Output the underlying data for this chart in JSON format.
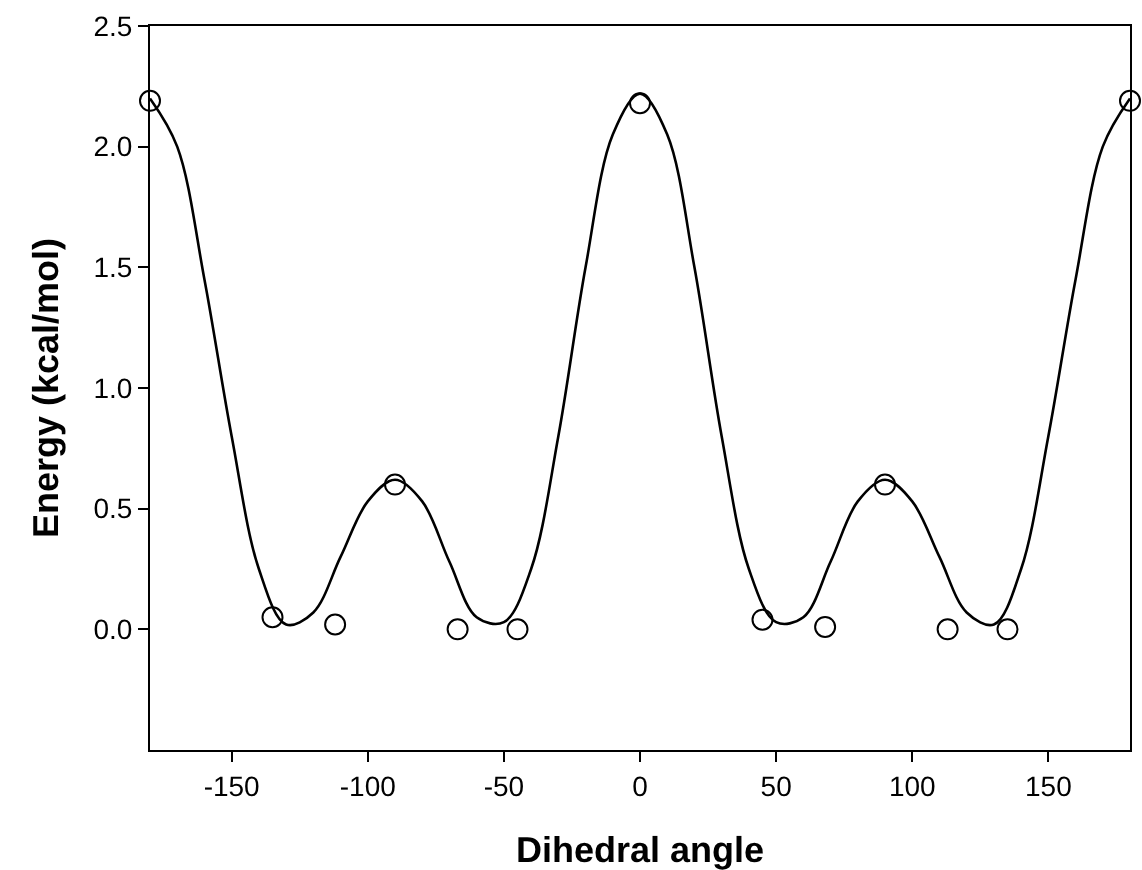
{
  "chart_data": {
    "type": "scatter",
    "xlabel": "Dihedral angle",
    "ylabel": "Energy (kcal/mol)",
    "xlim": [
      -180,
      180
    ],
    "ylim": [
      -0.5,
      2.5
    ],
    "xticks": [
      -150,
      -100,
      -50,
      0,
      50,
      100,
      150
    ],
    "yticks": [
      {
        "value": 0,
        "label": "0.0"
      },
      {
        "value": 0.5,
        "label": "0.5"
      },
      {
        "value": 1,
        "label": "1.0"
      },
      {
        "value": 1.5,
        "label": "1.5"
      },
      {
        "value": 2,
        "label": "2.0"
      },
      {
        "value": 2.5,
        "label": "2.5"
      }
    ],
    "grid": false,
    "series": [
      {
        "type": "line",
        "color": "#000000",
        "marker": "none",
        "line_style": "solid",
        "x": [
          -180,
          -170,
          -160,
          -150,
          -140,
          -130,
          -120,
          -110,
          -100,
          -90,
          -80,
          -70,
          -60,
          -50,
          -40,
          -30,
          -20,
          -10,
          0,
          10,
          20,
          30,
          40,
          50,
          60,
          70,
          80,
          90,
          100,
          110,
          120,
          130,
          140,
          150,
          160,
          170,
          180
        ],
        "values": [
          2.2,
          2.0,
          1.45,
          0.8,
          0.25,
          0.02,
          0.07,
          0.3,
          0.53,
          0.62,
          0.53,
          0.28,
          0.05,
          0.03,
          0.25,
          0.8,
          1.5,
          2.05,
          2.22,
          2.05,
          1.5,
          0.8,
          0.25,
          0.03,
          0.05,
          0.28,
          0.53,
          0.62,
          0.53,
          0.3,
          0.07,
          0.02,
          0.25,
          0.8,
          1.45,
          2.0,
          2.2
        ]
      },
      {
        "type": "scatter",
        "color": "#000000",
        "marker": "circle",
        "x": [
          -180,
          -135,
          -112,
          -90,
          -67,
          -45,
          0,
          45,
          68,
          90,
          113,
          135,
          180
        ],
        "values": [
          2.19,
          0.05,
          0.02,
          0.6,
          0.0,
          0.0,
          2.18,
          0.04,
          0.01,
          0.6,
          0.0,
          0.0,
          2.19
        ]
      }
    ]
  }
}
